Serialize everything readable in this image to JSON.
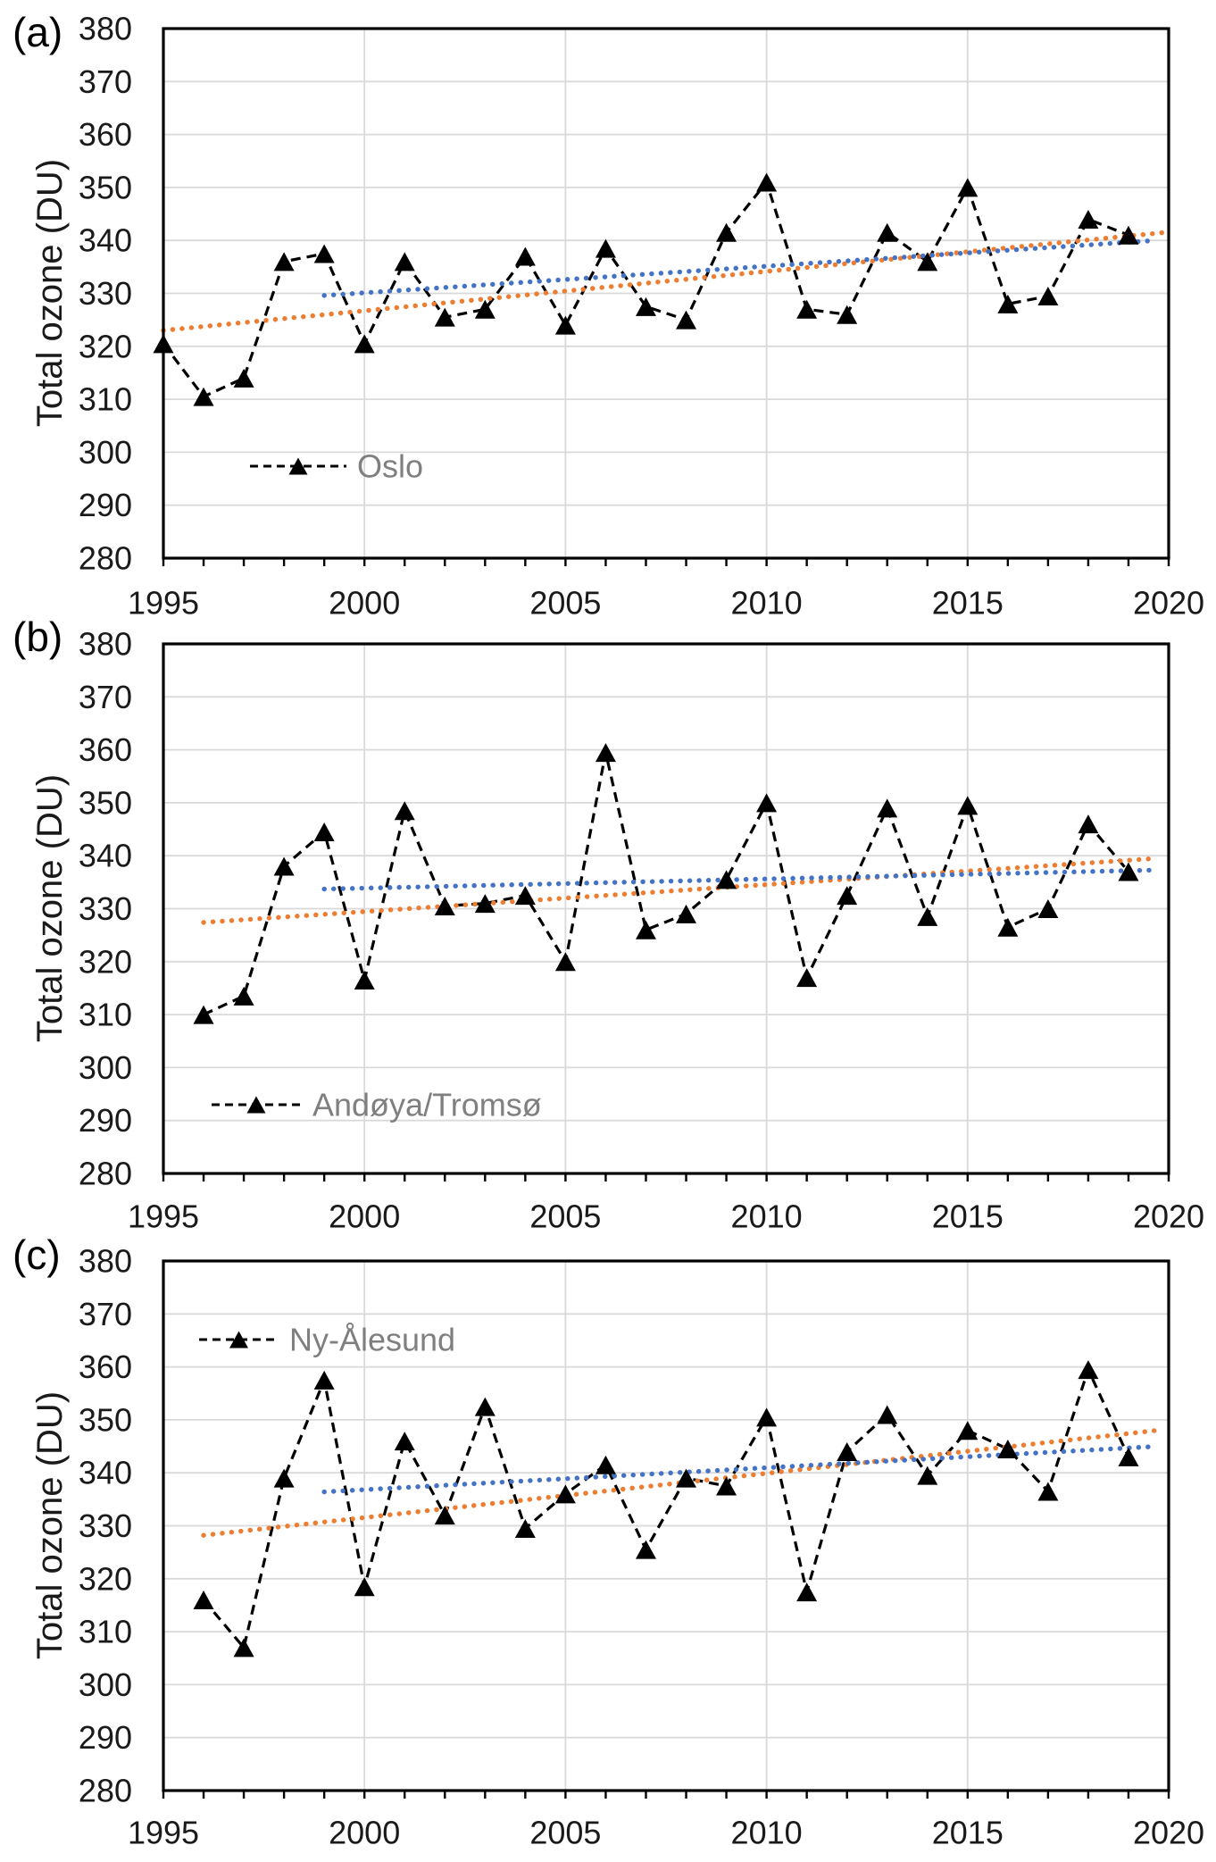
{
  "figure": {
    "ylabel": "Total ozone (DU)",
    "colors": {
      "series_black": "#000000",
      "trend_full_orange": "#ED7D31",
      "trend_late_blue": "#4472C4",
      "gridline": "#D9D9D9",
      "axis": "#000000",
      "legend_text": "#7F7F7F",
      "tick_text": "#1A1A1A"
    }
  },
  "chart_data": [
    {
      "type": "line",
      "panel_label": "(a)",
      "legend": "Oslo",
      "ylabel": "Total ozone (DU)",
      "ylim": [
        280,
        380
      ],
      "ytick_step": 10,
      "yticks": [
        280,
        290,
        300,
        310,
        320,
        330,
        340,
        350,
        360,
        370,
        380
      ],
      "xlim": [
        1995,
        2020
      ],
      "xticks": [
        1995,
        2000,
        2005,
        2010,
        2015,
        2020
      ],
      "grid": true,
      "x": [
        1995,
        1996,
        1997,
        1998,
        1999,
        2000,
        2001,
        2002,
        2003,
        2004,
        2005,
        2006,
        2007,
        2008,
        2009,
        2010,
        2011,
        2012,
        2013,
        2014,
        2015,
        2016,
        2017,
        2018,
        2019
      ],
      "values": [
        320.5,
        310.5,
        314,
        336,
        337.5,
        320.5,
        336,
        325.5,
        327,
        337,
        324,
        338.5,
        327.5,
        325,
        341.5,
        351,
        327,
        326,
        341.5,
        336,
        350,
        328,
        329.5,
        344,
        341
      ],
      "trend_orange": {
        "x": [
          1995.0,
          2019.9
        ],
        "y": [
          323.0,
          341.5
        ]
      },
      "trend_blue": {
        "x": [
          1999.0,
          2019.5
        ],
        "y": [
          329.6,
          339.9
        ]
      }
    },
    {
      "type": "line",
      "panel_label": "(b)",
      "legend": "Andøya/Tromsø",
      "ylabel": "Total ozone (DU)",
      "ylim": [
        280,
        380
      ],
      "ytick_step": 10,
      "yticks": [
        280,
        290,
        300,
        310,
        320,
        330,
        340,
        350,
        360,
        370,
        380
      ],
      "xlim": [
        1995,
        2020
      ],
      "xticks": [
        1995,
        2000,
        2005,
        2010,
        2015,
        2020
      ],
      "grid": true,
      "x": [
        1996,
        1997,
        1998,
        1999,
        2000,
        2001,
        2002,
        2003,
        2004,
        2005,
        2006,
        2007,
        2008,
        2009,
        2010,
        2011,
        2012,
        2013,
        2014,
        2015,
        2016,
        2017,
        2018,
        2019
      ],
      "values": [
        310,
        313.5,
        338,
        344.5,
        316.5,
        348.5,
        330.5,
        331,
        332.5,
        320,
        359.5,
        326,
        329,
        335.5,
        350,
        317,
        332.5,
        349,
        328.5,
        349.5,
        326.5,
        330,
        346,
        337
      ],
      "trend_orange": {
        "x": [
          1996.0,
          2019.7
        ],
        "y": [
          327.4,
          339.5
        ]
      },
      "trend_blue": {
        "x": [
          1999.0,
          2019.7
        ],
        "y": [
          333.7,
          337.3
        ]
      }
    },
    {
      "type": "line",
      "panel_label": "(c)",
      "legend": "Ny-Ålesund",
      "ylabel": "Total ozone (DU)",
      "ylim": [
        280,
        380
      ],
      "ytick_step": 10,
      "yticks": [
        280,
        290,
        300,
        310,
        320,
        330,
        340,
        350,
        360,
        370,
        380
      ],
      "xlim": [
        1995,
        2020
      ],
      "xticks": [
        1995,
        2000,
        2005,
        2010,
        2015,
        2020
      ],
      "grid": true,
      "x": [
        1996,
        1997,
        1998,
        1999,
        2000,
        2001,
        2002,
        2003,
        2004,
        2005,
        2006,
        2007,
        2008,
        2009,
        2010,
        2011,
        2012,
        2013,
        2014,
        2015,
        2016,
        2017,
        2018,
        2019
      ],
      "values": [
        316,
        307,
        339,
        357.5,
        318.5,
        346,
        332,
        352.5,
        329.5,
        336,
        341.5,
        325.5,
        339,
        337.5,
        350.5,
        317.5,
        344,
        351,
        339.5,
        348,
        344.5,
        336.5,
        359.5,
        343
      ],
      "trend_orange": {
        "x": [
          1996.0,
          2019.7
        ],
        "y": [
          328.2,
          348.0
        ]
      },
      "trend_blue": {
        "x": [
          1999.0,
          2019.5
        ],
        "y": [
          336.4,
          344.9
        ]
      }
    }
  ]
}
